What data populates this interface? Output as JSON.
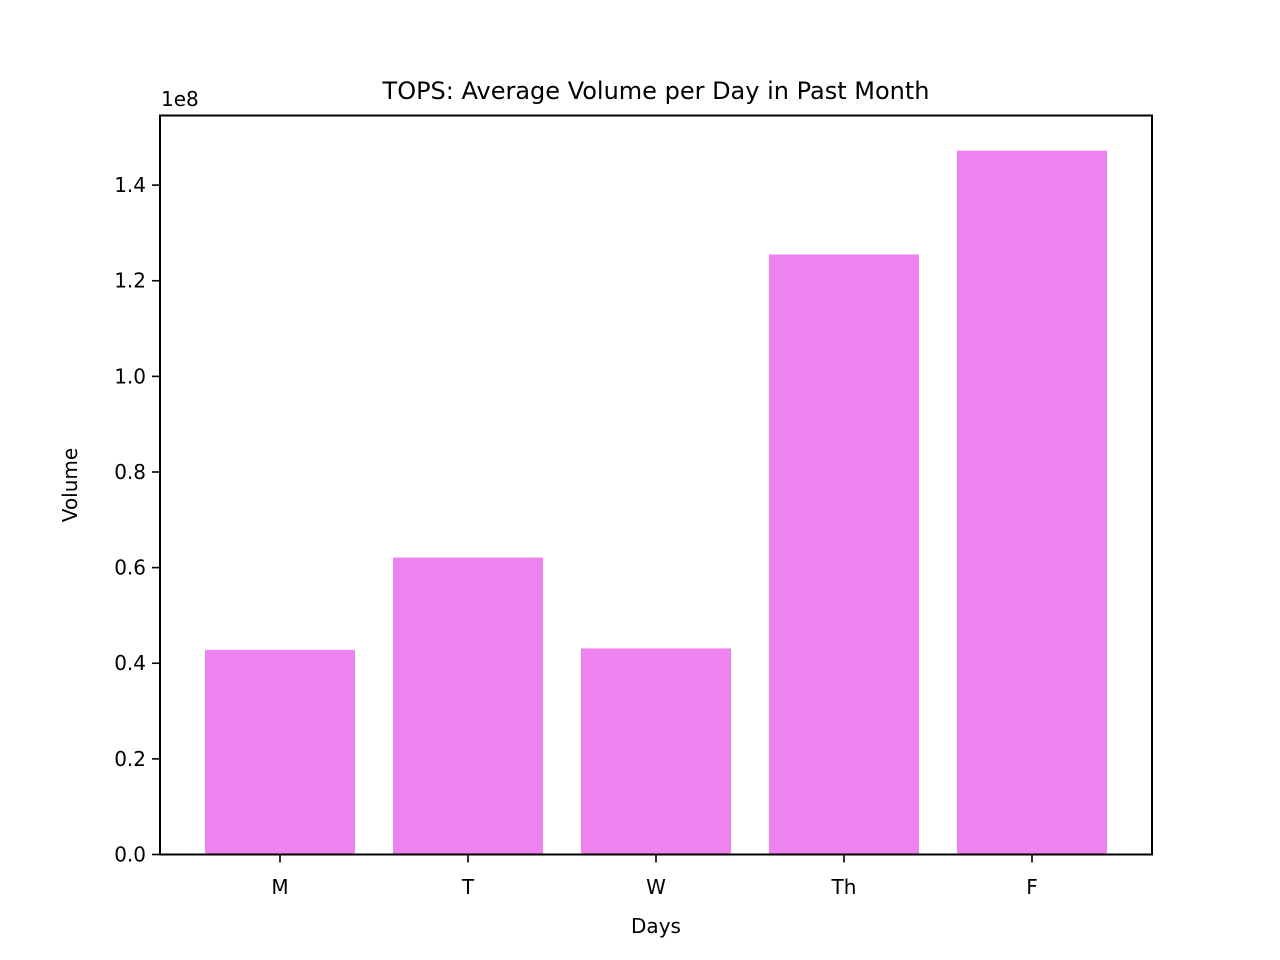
{
  "chart_data": {
    "type": "bar",
    "title": "TOPS: Average Volume per Day in Past Month",
    "xlabel": "Days",
    "ylabel": "Volume",
    "y_offset_label": "1e8",
    "categories": [
      "M",
      "T",
      "W",
      "Th",
      "F"
    ],
    "values": [
      42800000,
      62100000,
      43100000,
      125500000,
      147200000
    ],
    "ylim": [
      0,
      154560000
    ],
    "y_ticks": [
      0,
      20000000,
      40000000,
      60000000,
      80000000,
      100000000,
      120000000,
      140000000
    ],
    "y_tick_labels": [
      "0.0",
      "0.2",
      "0.4",
      "0.6",
      "0.8",
      "1.0",
      "1.2",
      "1.4"
    ],
    "bar_color": "#ee82ee",
    "grid": false,
    "legend": "none"
  }
}
